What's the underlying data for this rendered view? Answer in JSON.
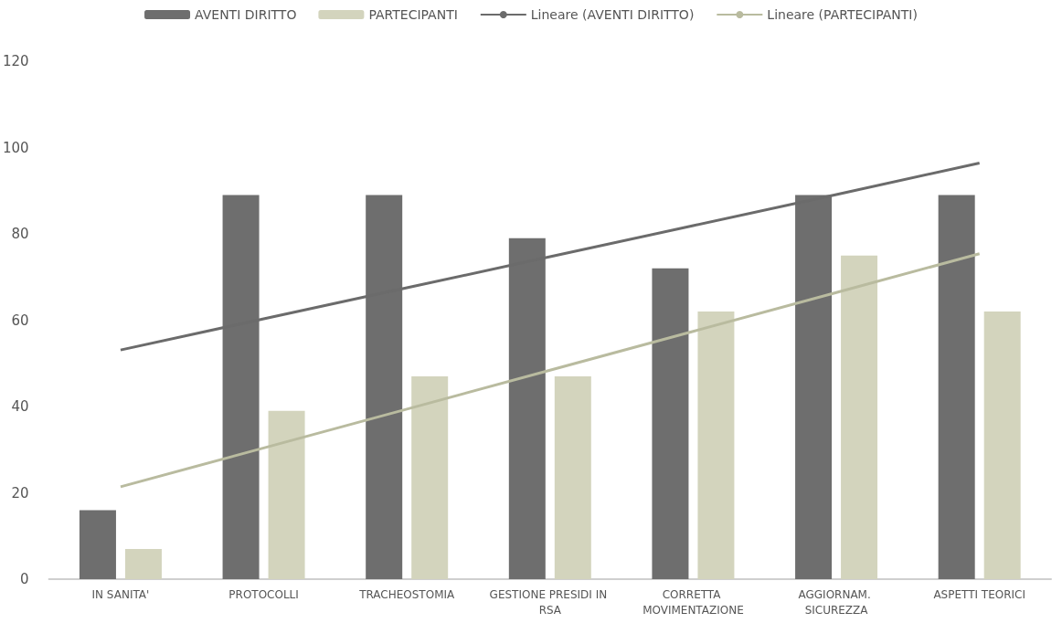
{
  "chart_data": {
    "type": "bar",
    "categories": [
      "IN SANITA'",
      "PROTOCOLLI",
      "TRACHEOSTOMIA",
      "GESTIONE PRESIDI IN RSA",
      "CORRETTA MOVIMENTAZIONE",
      "AGGIORNAM. SICUREZZA",
      "ASPETTI TEORICI"
    ],
    "series": [
      {
        "name": "AVENTI DIRITTO",
        "color": "#6e6e6e",
        "values": [
          16,
          89,
          89,
          79,
          72,
          89,
          89
        ]
      },
      {
        "name": "PARTECIPANTI",
        "color": "#d3d4bd",
        "values": [
          7,
          39,
          47,
          47,
          62,
          75,
          62
        ]
      },
      {
        "name": "Lineare (AVENTI DIRITTO)",
        "type": "line",
        "color": "#6b6b6b",
        "values": [
          53.1,
          60.3,
          67.5,
          74.7,
          81.9,
          89.1,
          96.4
        ]
      },
      {
        "name": "Lineare (PARTECIPANTI)",
        "type": "line",
        "color": "#b9bb9f",
        "values": [
          21.4,
          30.4,
          39.4,
          48.4,
          57.4,
          66.4,
          75.4
        ]
      }
    ],
    "ylim": [
      0,
      120
    ],
    "yticks": [
      0,
      20,
      40,
      60,
      80,
      100,
      120
    ],
    "grid": false,
    "legend": "top",
    "marker": "none",
    "line_style": "solid"
  }
}
